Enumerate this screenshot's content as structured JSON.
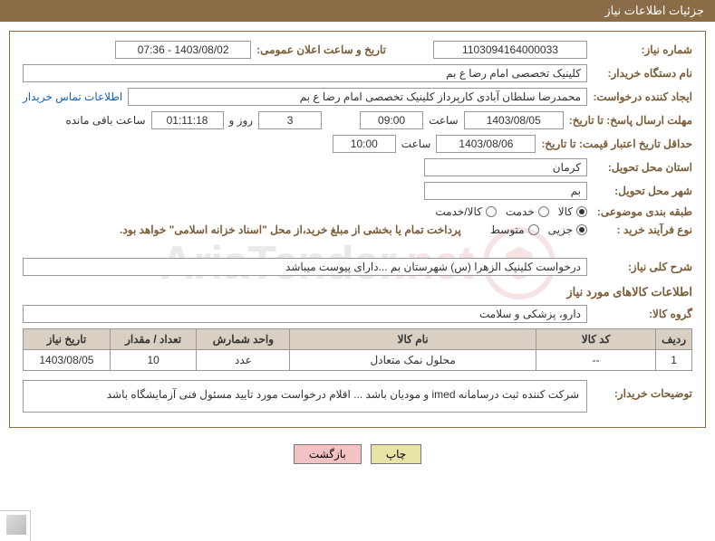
{
  "header": {
    "title": "جزئیات اطلاعات نیاز"
  },
  "fields": {
    "needNumber": {
      "label": "شماره نیاز:",
      "value": "1103094164000033"
    },
    "announceDatetime": {
      "label": "تاریخ و ساعت اعلان عمومی:",
      "value": "1403/08/02 - 07:36"
    },
    "buyerOrg": {
      "label": "نام دستگاه خریدار:",
      "value": "کلینیک تخصصی امام رضا  ع  بم"
    },
    "requester": {
      "label": "ایجاد کننده درخواست:",
      "value": "محمدرضا سلطان آبادی کارپرداز کلینیک تخصصی امام رضا  ع  بم"
    },
    "buyerContact": "اطلاعات تماس خریدار",
    "responseDeadline": {
      "label": "مهلت ارسال پاسخ: تا تاریخ:",
      "date": "1403/08/05",
      "timeLabel": "ساعت",
      "time": "09:00",
      "daysValue": "3",
      "daysUnit": "روز و",
      "countdown": "01:11:18",
      "remainLabel": "ساعت باقی مانده"
    },
    "priceValidity": {
      "label": "حداقل تاریخ اعتبار قیمت: تا تاریخ:",
      "date": "1403/08/06",
      "timeLabel": "ساعت",
      "time": "10:00"
    },
    "deliveryProvince": {
      "label": "استان محل تحویل:",
      "value": "کرمان"
    },
    "deliveryCity": {
      "label": "شهر محل تحویل:",
      "value": "بم"
    },
    "subjectClass": {
      "label": "طبقه بندی موضوعی:",
      "options": [
        "کالا",
        "خدمت",
        "کالا/خدمت"
      ],
      "selected": 0
    },
    "purchaseType": {
      "label": "نوع فرآیند خرید :",
      "options": [
        "جزیی",
        "متوسط"
      ],
      "selected": 0,
      "note": "پرداخت تمام یا بخشی از مبلغ خرید،از محل \"اسناد خزانه اسلامی\" خواهد بود."
    },
    "needDesc": {
      "label": "شرح کلی نیاز:",
      "value": "درخواست کلینیک الزهرا (س) شهرستان بم ...دارای پیوست میباشد"
    },
    "goodsInfoTitle": "اطلاعات کالاهای مورد نیاز",
    "goodsGroup": {
      "label": "گروه کالا:",
      "value": "دارو، پزشکی و سلامت"
    },
    "buyerNotes": {
      "label": "توضیحات خریدار:",
      "value": "شرکت کننده ثبت درسامانه imed و مودیان باشد ... اقلام درخواست مورد تایید مسئول فنی آزمایشگاه باشد"
    }
  },
  "table": {
    "headers": [
      "ردیف",
      "کد کالا",
      "نام کالا",
      "واحد شمارش",
      "تعداد / مقدار",
      "تاریخ نیاز"
    ],
    "widths": [
      "5%",
      "18%",
      "37%",
      "14%",
      "13%",
      "13%"
    ],
    "rows": [
      {
        "idx": "1",
        "code": "--",
        "name": "محلول نمک متعادل",
        "unit": "عدد",
        "qty": "10",
        "needDate": "1403/08/05"
      }
    ]
  },
  "buttons": {
    "print": "چاپ",
    "back": "بازگشت"
  },
  "watermark": {
    "brand": "AriaTender",
    "tld": ".net"
  },
  "style": {
    "headerBg": "#8a6d47",
    "labelColor": "#7a5c36",
    "tableHeaderBg": "#d9d0c3",
    "linkColor": "#1560bd",
    "printBtnBg": "#e8e4a8",
    "backBtnBg": "#f4c2c2"
  }
}
